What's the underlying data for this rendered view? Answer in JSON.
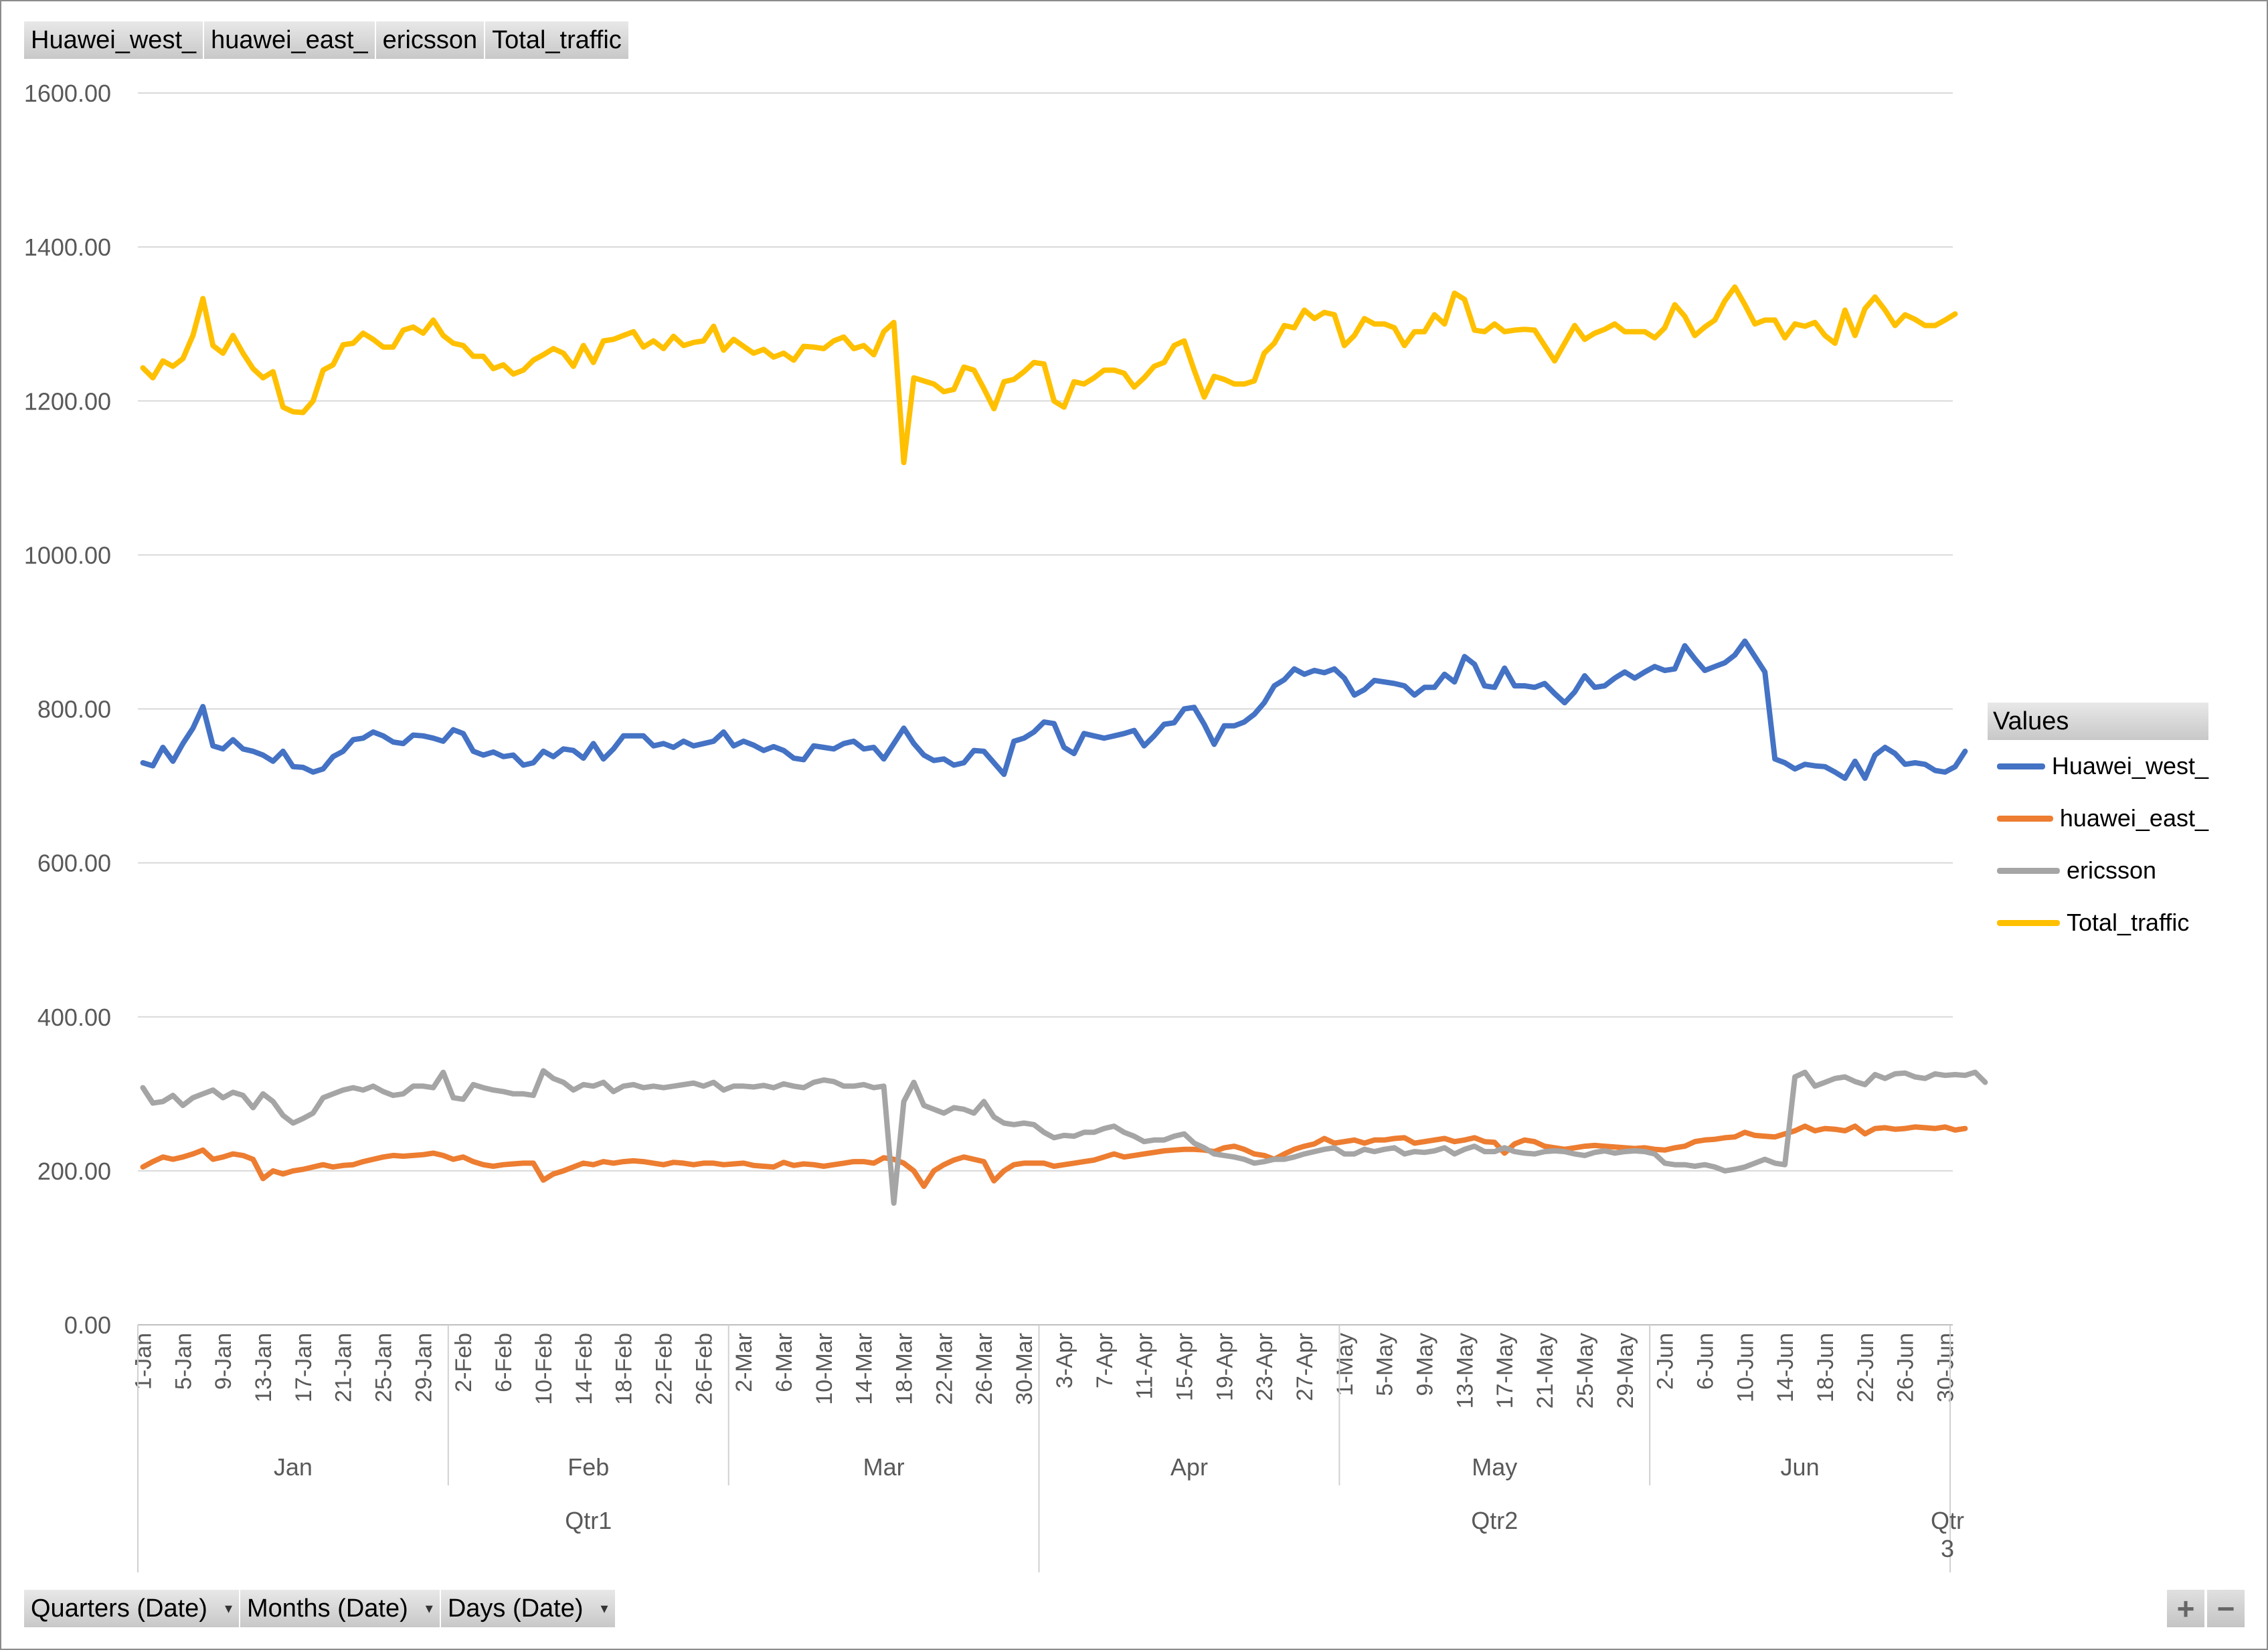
{
  "top_fields": [
    "Huawei_west_",
    "huawei_east_",
    "ericsson",
    "Total_traffic"
  ],
  "bottom_fields": [
    {
      "label": "Quarters (Date)"
    },
    {
      "label": "Months (Date)"
    },
    {
      "label": "Days (Date)"
    }
  ],
  "dropdown_glyph": "▾",
  "zoom": {
    "plus": "+",
    "minus": "−"
  },
  "legend": {
    "title": "Values"
  },
  "chart_data": {
    "type": "line",
    "title": "",
    "xlabel": "",
    "ylabel": "",
    "ylim": [
      0,
      1600
    ],
    "y_ticks": [
      "0.00",
      "200.00",
      "400.00",
      "600.00",
      "800.00",
      "1000.00",
      "1200.00",
      "1400.00",
      "1600.00"
    ],
    "grid": true,
    "legend_position": "right",
    "day_ticks": [
      "1-Jan",
      "5-Jan",
      "9-Jan",
      "13-Jan",
      "17-Jan",
      "21-Jan",
      "25-Jan",
      "29-Jan",
      "2-Feb",
      "6-Feb",
      "10-Feb",
      "14-Feb",
      "18-Feb",
      "22-Feb",
      "26-Feb",
      "2-Mar",
      "6-Mar",
      "10-Mar",
      "14-Mar",
      "18-Mar",
      "22-Mar",
      "26-Mar",
      "30-Mar",
      "3-Apr",
      "7-Apr",
      "11-Apr",
      "15-Apr",
      "19-Apr",
      "23-Apr",
      "27-Apr",
      "1-May",
      "5-May",
      "9-May",
      "13-May",
      "17-May",
      "21-May",
      "25-May",
      "29-May",
      "2-Jun",
      "6-Jun",
      "10-Jun",
      "14-Jun",
      "18-Jun",
      "22-Jun",
      "26-Jun",
      "30-Jun"
    ],
    "months": [
      "Jan",
      "Feb",
      "Mar",
      "Apr",
      "May",
      "Jun"
    ],
    "quarters": [
      "Qtr1",
      "Qtr2",
      "Qtr3"
    ],
    "x_start": "1-Jan",
    "x_end": "1-Jul",
    "series": [
      {
        "name": "Huawei_west_",
        "color": "#4472C4",
        "values": [
          730,
          726,
          750,
          732,
          755,
          775,
          803,
          752,
          748,
          760,
          748,
          745,
          740,
          732,
          745,
          725,
          724,
          718,
          722,
          738,
          745,
          760,
          762,
          770,
          765,
          757,
          755,
          766,
          765,
          762,
          758,
          773,
          768,
          745,
          740,
          744,
          738,
          740,
          727,
          730,
          745,
          738,
          748,
          746,
          736,
          755,
          735,
          748,
          765,
          765,
          765,
          752,
          755,
          750,
          758,
          752,
          755,
          758,
          770,
          752,
          758,
          753,
          746,
          751,
          746,
          736,
          734,
          752,
          750,
          748,
          755,
          758,
          748,
          750,
          735,
          755,
          775,
          755,
          740,
          733,
          735,
          727,
          730,
          746,
          745,
          730,
          715,
          758,
          762,
          770,
          783,
          781,
          750,
          742,
          768,
          765,
          762,
          765,
          768,
          772,
          752,
          765,
          780,
          782,
          800,
          802,
          780,
          754,
          778,
          778,
          783,
          793,
          808,
          830,
          838,
          852,
          845,
          850,
          847,
          852,
          840,
          818,
          825,
          837,
          835,
          833,
          830,
          818,
          828,
          828,
          845,
          835,
          868,
          858,
          830,
          828,
          853,
          830,
          830,
          828,
          833,
          820,
          808,
          822,
          843,
          828,
          830,
          840,
          848,
          840,
          848,
          855,
          850,
          852,
          882,
          865,
          850,
          855,
          860,
          870,
          888,
          868,
          848,
          735,
          730,
          722,
          728,
          726,
          725,
          718,
          710,
          732,
          710,
          740,
          750,
          742,
          728,
          730,
          728,
          720,
          718,
          725,
          745
        ]
      },
      {
        "name": "huawei_east_",
        "color": "#ED7D31",
        "values": [
          205,
          212,
          218,
          215,
          218,
          222,
          227,
          215,
          218,
          222,
          220,
          215,
          190,
          200,
          196,
          200,
          202,
          205,
          208,
          205,
          207,
          208,
          212,
          215,
          218,
          220,
          219,
          220,
          221,
          223,
          220,
          215,
          218,
          212,
          208,
          206,
          208,
          209,
          210,
          210,
          188,
          196,
          200,
          205,
          210,
          208,
          212,
          210,
          212,
          213,
          212,
          210,
          208,
          211,
          210,
          208,
          210,
          210,
          208,
          209,
          210,
          207,
          206,
          205,
          211,
          207,
          209,
          208,
          206,
          208,
          210,
          212,
          212,
          210,
          217,
          215,
          210,
          200,
          180,
          200,
          208,
          214,
          218,
          215,
          212,
          187,
          200,
          208,
          210,
          210,
          210,
          206,
          208,
          210,
          212,
          214,
          218,
          222,
          218,
          220,
          222,
          224,
          226,
          227,
          228,
          228,
          227,
          225,
          230,
          232,
          228,
          222,
          220,
          215,
          222,
          228,
          232,
          235,
          242,
          236,
          238,
          240,
          236,
          240,
          240,
          242,
          243,
          236,
          238,
          240,
          242,
          238,
          240,
          243,
          238,
          237,
          223,
          235,
          240,
          238,
          232,
          230,
          228,
          230,
          232,
          233,
          232,
          231,
          230,
          229,
          230,
          228,
          227,
          230,
          232,
          238,
          240,
          241,
          243,
          244,
          250,
          246,
          245,
          244,
          248,
          252,
          258,
          252,
          255,
          254,
          252,
          258,
          248,
          255,
          256,
          254,
          255,
          257,
          256,
          255,
          257,
          253,
          255
        ]
      },
      {
        "name": "ericsson",
        "color": "#A5A5A5",
        "values": [
          308,
          288,
          290,
          298,
          285,
          295,
          300,
          305,
          295,
          302,
          298,
          282,
          300,
          290,
          272,
          262,
          268,
          275,
          295,
          300,
          305,
          308,
          305,
          310,
          303,
          298,
          300,
          310,
          310,
          308,
          328,
          295,
          293,
          312,
          308,
          305,
          303,
          300,
          300,
          298,
          330,
          320,
          315,
          305,
          312,
          310,
          315,
          303,
          310,
          312,
          308,
          310,
          308,
          310,
          312,
          314,
          310,
          315,
          305,
          310,
          310,
          309,
          311,
          308,
          313,
          310,
          308,
          315,
          318,
          316,
          310,
          310,
          312,
          308,
          310,
          158,
          290,
          315,
          285,
          280,
          275,
          282,
          280,
          275,
          290,
          270,
          262,
          260,
          262,
          260,
          250,
          243,
          246,
          245,
          250,
          250,
          255,
          258,
          250,
          245,
          238,
          240,
          240,
          245,
          248,
          236,
          230,
          222,
          220,
          218,
          215,
          210,
          212,
          215,
          215,
          218,
          222,
          225,
          228,
          230,
          222,
          222,
          228,
          225,
          228,
          230,
          222,
          225,
          224,
          226,
          230,
          222,
          228,
          232,
          225,
          225,
          230,
          225,
          223,
          222,
          225,
          226,
          225,
          222,
          220,
          224,
          226,
          223,
          225,
          226,
          225,
          222,
          210,
          208,
          208,
          206,
          208,
          205,
          200,
          202,
          205,
          210,
          215,
          210,
          208,
          322,
          328,
          310,
          315,
          320,
          322,
          316,
          312,
          325,
          320,
          326,
          327,
          322,
          320,
          326,
          324,
          325,
          324,
          328,
          315
        ]
      },
      {
        "name": "Total_traffic",
        "color": "#FFC000",
        "values": [
          1243,
          1230,
          1252,
          1245,
          1255,
          1285,
          1333,
          1272,
          1262,
          1285,
          1262,
          1242,
          1230,
          1238,
          1192,
          1186,
          1185,
          1200,
          1240,
          1247,
          1273,
          1275,
          1288,
          1280,
          1270,
          1270,
          1292,
          1296,
          1288,
          1305,
          1285,
          1275,
          1272,
          1258,
          1258,
          1242,
          1247,
          1235,
          1240,
          1253,
          1260,
          1268,
          1262,
          1245,
          1272,
          1250,
          1278,
          1280,
          1285,
          1290,
          1270,
          1278,
          1268,
          1284,
          1272,
          1276,
          1278,
          1297,
          1266,
          1280,
          1271,
          1262,
          1267,
          1257,
          1262,
          1253,
          1271,
          1270,
          1268,
          1278,
          1283,
          1268,
          1272,
          1260,
          1290,
          1302,
          1120,
          1230,
          1226,
          1222,
          1212,
          1215,
          1244,
          1240,
          1216,
          1190,
          1225,
          1228,
          1238,
          1250,
          1248,
          1200,
          1192,
          1225,
          1222,
          1230,
          1240,
          1240,
          1236,
          1218,
          1230,
          1245,
          1250,
          1272,
          1278,
          1240,
          1205,
          1232,
          1228,
          1222,
          1222,
          1226,
          1262,
          1275,
          1298,
          1295,
          1318,
          1307,
          1315,
          1312,
          1272,
          1285,
          1307,
          1300,
          1300,
          1295,
          1272,
          1290,
          1290,
          1312,
          1300,
          1340,
          1332,
          1292,
          1290,
          1300,
          1290,
          1292,
          1293,
          1292,
          1272,
          1252,
          1275,
          1298,
          1280,
          1288,
          1293,
          1300,
          1290,
          1290,
          1290,
          1282,
          1295,
          1325,
          1310,
          1285,
          1296,
          1305,
          1330,
          1348,
          1325,
          1300,
          1305,
          1305,
          1282,
          1300,
          1297,
          1302,
          1285,
          1275,
          1318,
          1285,
          1320,
          1335,
          1318,
          1298,
          1312,
          1306,
          1298,
          1298,
          1305,
          1313
        ]
      }
    ]
  }
}
